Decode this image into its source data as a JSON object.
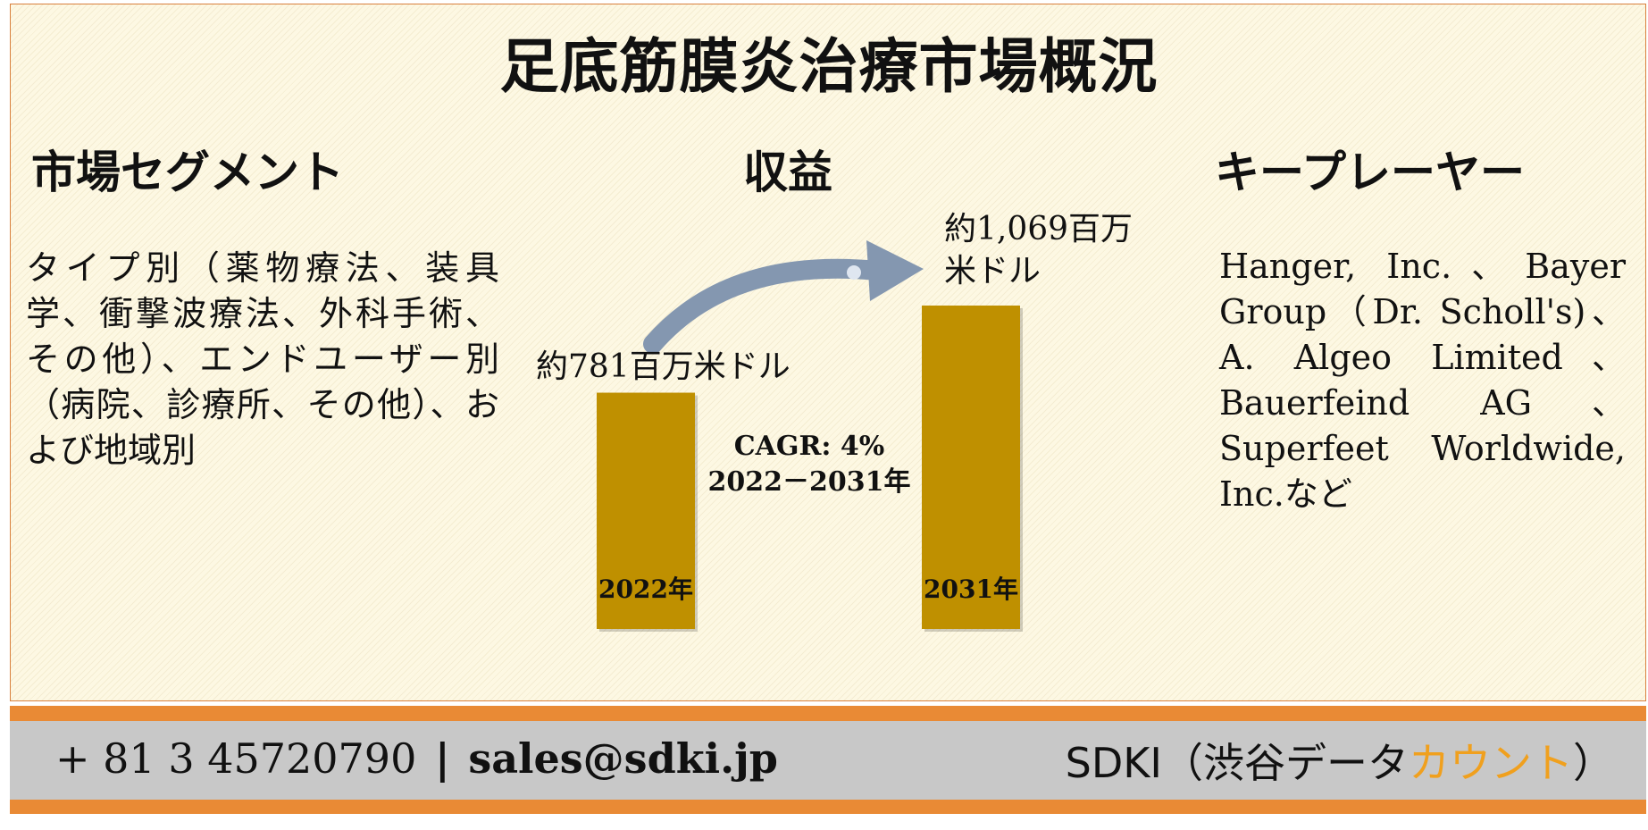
{
  "title": "足底筋膜炎治療市場概況",
  "sections": {
    "segment": {
      "heading": "市場セグメント",
      "text": "タイプ別（薬物療法、装具学、衝撃波療法、外科手術、その他）、エンドユーザー別（病院、診療所、その他）、および地域別"
    },
    "revenue": {
      "heading": "収益"
    },
    "key_players": {
      "heading": "キープレーヤー",
      "text": "Hanger, Inc.、Bayer Group（Dr. Scholl's)、A. Algeo Limited、Bauerfeind AG、Superfeet Worldwide, Inc.など"
    }
  },
  "chart_data": {
    "type": "bar",
    "categories": [
      "2022年",
      "2031年"
    ],
    "values": [
      781,
      1069
    ],
    "value_labels": [
      "約781百万米ドル",
      "約1,069百万米ドル"
    ],
    "value_labels_line2": [
      "",
      "米ドル"
    ],
    "value_labels_line1": [
      "約781百万米ドル",
      "約1,069百万"
    ],
    "cagr_line1": "CAGR: 4%",
    "cagr_line2": "2022－2031年",
    "bar_color": "#bf9000",
    "arrow_color": "#8497b0"
  },
  "footer": {
    "phone": "+ 81 3 45720790",
    "separator": "|",
    "email": "sales@sdki.jp",
    "company_prefix": "SDKI（渋谷データ",
    "company_accent": "カウント",
    "company_suffix": "）",
    "accent_color": "#f0a01e",
    "band_color": "#e98a35"
  }
}
